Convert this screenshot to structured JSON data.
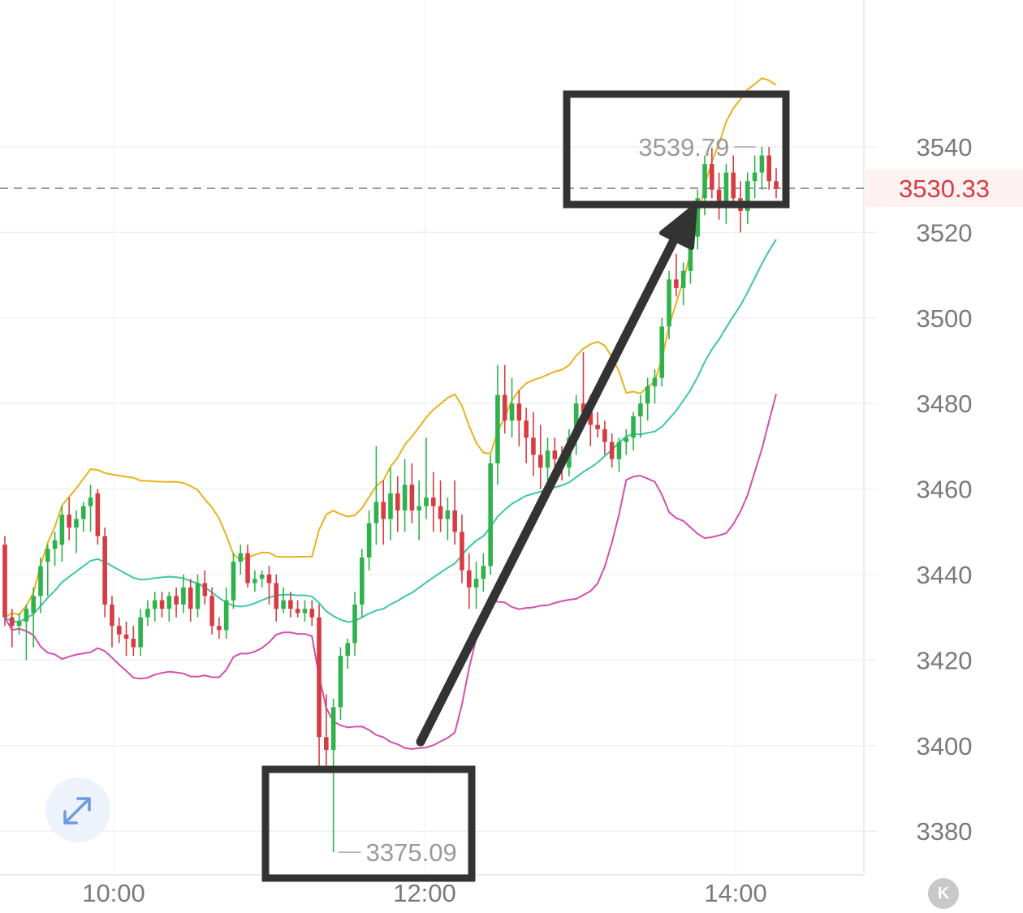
{
  "chart_data": {
    "type": "candlestick",
    "y_ticks": [
      "3540",
      "3520",
      "3500",
      "3480",
      "3460",
      "3440",
      "3420",
      "3400",
      "3380"
    ],
    "x_ticks": [
      "10:00",
      "12:00",
      "14:00"
    ],
    "ylim": [
      3370,
      3560
    ],
    "grid": true,
    "last_price": "3530.33",
    "high_annotation": "3539.79",
    "low_annotation": "3375.09",
    "colors": {
      "up": "#2fb24c",
      "down": "#d63c43",
      "upper_band": "#e8b31c",
      "middle_band": "#3ec6a8",
      "lower_band": "#d24fb0",
      "annotation": "#333333"
    },
    "candles": [
      [
        3447,
        3449,
        3428,
        3430
      ],
      [
        3430,
        3432,
        3423,
        3428
      ],
      [
        3428,
        3431,
        3426,
        3429
      ],
      [
        3429,
        3433,
        3420,
        3432
      ],
      [
        3431,
        3437,
        3423,
        3435
      ],
      [
        3435,
        3444,
        3431,
        3442
      ],
      [
        3443,
        3447,
        3435,
        3446
      ],
      [
        3446,
        3450,
        3442,
        3448
      ],
      [
        3447,
        3456,
        3443,
        3454
      ],
      [
        3454,
        3458,
        3448,
        3451
      ],
      [
        3451,
        3455,
        3445,
        3453
      ],
      [
        3453,
        3457,
        3450,
        3456
      ],
      [
        3456,
        3461,
        3450,
        3458
      ],
      [
        3459,
        3460,
        3447,
        3449
      ],
      [
        3449,
        3451,
        3430,
        3433
      ],
      [
        3433,
        3435,
        3423,
        3428
      ],
      [
        3428,
        3430,
        3424,
        3426
      ],
      [
        3426,
        3429,
        3421,
        3425
      ],
      [
        3425,
        3428,
        3421,
        3423
      ],
      [
        3423,
        3432,
        3421,
        3430
      ],
      [
        3430,
        3434,
        3428,
        3432
      ],
      [
        3432,
        3436,
        3429,
        3434
      ],
      [
        3434,
        3436,
        3430,
        3432
      ],
      [
        3432,
        3436,
        3429,
        3435
      ],
      [
        3435,
        3437,
        3430,
        3433
      ],
      [
        3433,
        3440,
        3431,
        3437
      ],
      [
        3437,
        3439,
        3429,
        3432
      ],
      [
        3432,
        3440,
        3430,
        3438
      ],
      [
        3438,
        3441,
        3433,
        3435
      ],
      [
        3435,
        3437,
        3426,
        3428
      ],
      [
        3428,
        3430,
        3425,
        3427
      ],
      [
        3427,
        3437,
        3425,
        3434
      ],
      [
        3434,
        3445,
        3432,
        3443
      ],
      [
        3443,
        3447,
        3440,
        3445
      ],
      [
        3445,
        3447,
        3437,
        3438
      ],
      [
        3438,
        3441,
        3436,
        3439
      ],
      [
        3439,
        3441,
        3437,
        3440
      ],
      [
        3440,
        3442,
        3433,
        3438
      ],
      [
        3438,
        3440,
        3429,
        3432
      ],
      [
        3432,
        3437,
        3431,
        3434
      ],
      [
        3434,
        3436,
        3430,
        3432
      ],
      [
        3432,
        3434,
        3430,
        3431
      ],
      [
        3431,
        3434,
        3429,
        3432
      ],
      [
        3432,
        3434,
        3428,
        3430
      ],
      [
        3430,
        3433,
        3395,
        3402
      ],
      [
        3402,
        3412,
        3394,
        3399
      ],
      [
        3399,
        3411,
        3375.09,
        3409
      ],
      [
        3409,
        3423,
        3406,
        3421
      ],
      [
        3421,
        3425,
        3418,
        3424
      ],
      [
        3424,
        3436,
        3421,
        3433
      ],
      [
        3433,
        3446,
        3430,
        3444
      ],
      [
        3444,
        3455,
        3441,
        3452
      ],
      [
        3452,
        3470,
        3447,
        3457
      ],
      [
        3457,
        3462,
        3447,
        3453
      ],
      [
        3453,
        3465,
        3448,
        3459
      ],
      [
        3459,
        3463,
        3450,
        3455
      ],
      [
        3455,
        3467,
        3450,
        3461
      ],
      [
        3461,
        3466,
        3452,
        3455
      ],
      [
        3455,
        3462,
        3448,
        3456
      ],
      [
        3456,
        3472,
        3453,
        3458
      ],
      [
        3458,
        3464,
        3450,
        3456
      ],
      [
        3456,
        3462,
        3450,
        3453
      ],
      [
        3453,
        3458,
        3448,
        3455
      ],
      [
        3455,
        3462,
        3447,
        3450
      ],
      [
        3450,
        3454,
        3438,
        3441
      ],
      [
        3441,
        3445,
        3432,
        3437
      ],
      [
        3437,
        3443,
        3432,
        3439
      ],
      [
        3439,
        3445,
        3436,
        3442
      ],
      [
        3442,
        3468,
        3440,
        3466
      ],
      [
        3466,
        3489,
        3461,
        3482
      ],
      [
        3482,
        3489,
        3473,
        3476
      ],
      [
        3476,
        3486,
        3472,
        3480
      ],
      [
        3480,
        3483,
        3470,
        3476
      ],
      [
        3476,
        3479,
        3466,
        3472
      ],
      [
        3472,
        3478,
        3463,
        3468
      ],
      [
        3468,
        3475,
        3460,
        3465
      ],
      [
        3465,
        3472,
        3462,
        3469
      ],
      [
        3469,
        3472,
        3465,
        3467
      ],
      [
        3467,
        3470,
        3462,
        3465
      ],
      [
        3465,
        3474,
        3463,
        3472
      ],
      [
        3472,
        3482,
        3468,
        3480
      ],
      [
        3480,
        3492,
        3476,
        3478
      ],
      [
        3478,
        3482,
        3470,
        3475
      ],
      [
        3475,
        3478,
        3472,
        3474
      ],
      [
        3474,
        3476,
        3468,
        3471
      ],
      [
        3471,
        3473,
        3465,
        3467
      ],
      [
        3467,
        3472,
        3464,
        3471
      ],
      [
        3471,
        3474,
        3468,
        3472
      ],
      [
        3472,
        3478,
        3469,
        3477
      ],
      [
        3477,
        3482,
        3472,
        3480
      ],
      [
        3480,
        3486,
        3476,
        3484
      ],
      [
        3484,
        3488,
        3480,
        3486
      ],
      [
        3486,
        3500,
        3484,
        3498
      ],
      [
        3498,
        3511,
        3495,
        3509
      ],
      [
        3509,
        3515,
        3505,
        3507
      ],
      [
        3507,
        3513,
        3503,
        3511
      ],
      [
        3511,
        3520,
        3508,
        3519
      ],
      [
        3519,
        3530,
        3516,
        3528
      ],
      [
        3528,
        3538,
        3524,
        3536
      ],
      [
        3536,
        3539.79,
        3528,
        3530
      ],
      [
        3530,
        3534,
        3523,
        3526
      ],
      [
        3526,
        3536,
        3522,
        3534
      ],
      [
        3534,
        3538,
        3526,
        3528
      ],
      [
        3528,
        3532,
        3520,
        3525
      ],
      [
        3525,
        3534,
        3522,
        3532
      ],
      [
        3532,
        3538,
        3528,
        3534
      ],
      [
        3534,
        3540,
        3530,
        3538
      ],
      [
        3538,
        3540,
        3530,
        3532
      ],
      [
        3532,
        3535,
        3528,
        3530.33
      ]
    ]
  },
  "ui": {
    "expand_icon": "expand-arrows-icon",
    "kline_icon": "kline-toggle-icon",
    "kline_glyph": "K"
  }
}
